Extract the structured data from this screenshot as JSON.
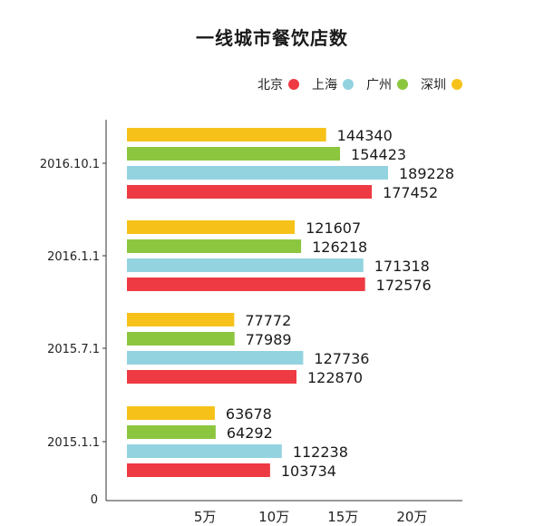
{
  "chart_data": {
    "type": "bar",
    "orientation": "horizontal",
    "title": "一线城市餐饮店数",
    "categories": [
      "2016.10.1",
      "2016.1.1",
      "2015.7.1",
      "2015.1.1"
    ],
    "series": [
      {
        "name": "深圳",
        "color": "#f6c21a",
        "values": [
          144340,
          121607,
          77772,
          63678
        ]
      },
      {
        "name": "广州",
        "color": "#8cc63f",
        "values": [
          154423,
          126218,
          77989,
          64292
        ]
      },
      {
        "name": "上海",
        "color": "#93d3df",
        "values": [
          189228,
          171318,
          127736,
          112238
        ]
      },
      {
        "name": "北京",
        "color": "#ee3a42",
        "values": [
          177452,
          172576,
          122870,
          103734
        ]
      }
    ],
    "legend_order": [
      "北京",
      "上海",
      "广州",
      "深圳"
    ],
    "legend_position": "top-right",
    "x_ticks": [
      {
        "value": 50000,
        "label": "5万"
      },
      {
        "value": 100000,
        "label": "10万"
      },
      {
        "value": 150000,
        "label": "15万"
      },
      {
        "value": 200000,
        "label": "20万"
      }
    ],
    "y_origin_label": "0",
    "xlim": [
      0,
      240000
    ],
    "grid": false
  }
}
